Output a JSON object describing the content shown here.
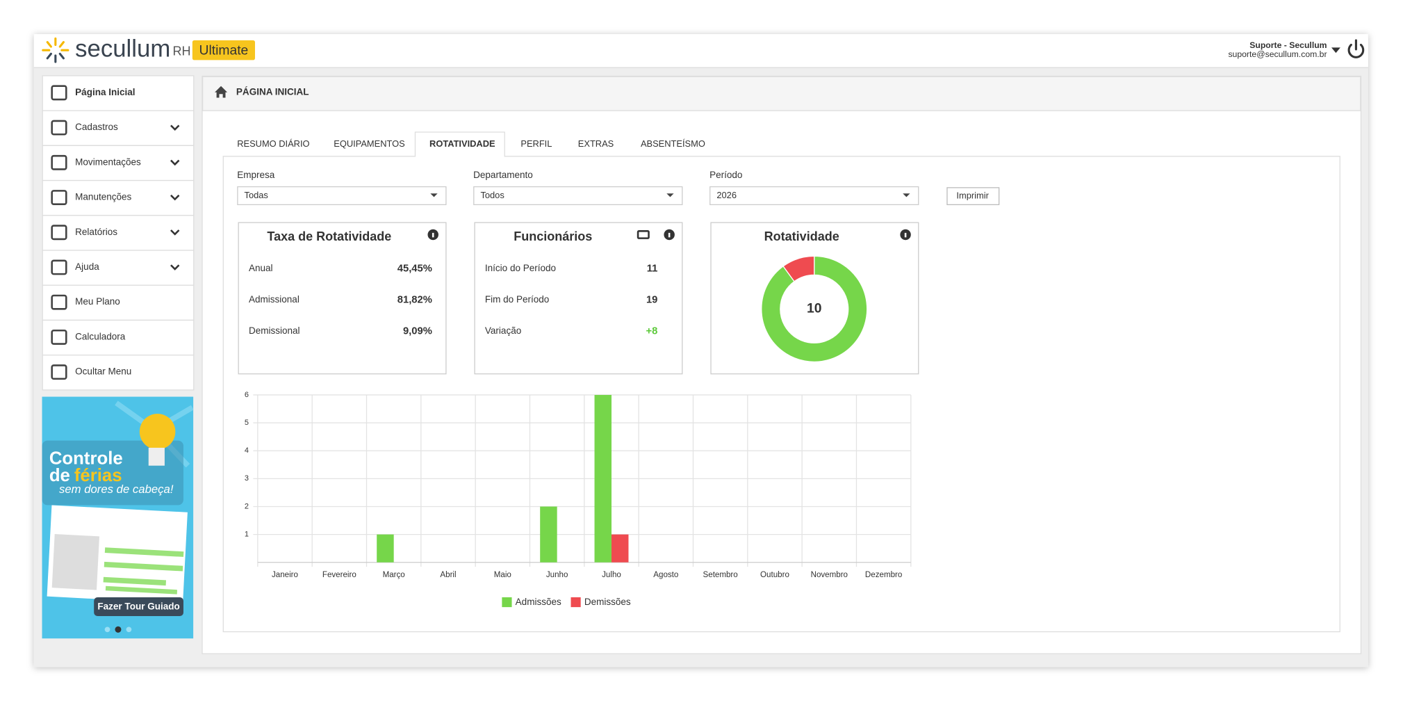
{
  "header": {
    "logo": "secullum",
    "product": "RH",
    "edition": "Ultimate",
    "user_name": "Suporte - Secullum",
    "user_email": "suporte@secullum.com.br"
  },
  "sidebar": {
    "active_menu": 0,
    "menu": [
      {
        "label": "Página Inicial",
        "submenu": false
      },
      {
        "label": "Cadastros",
        "submenu": true
      },
      {
        "label": "Movimentações",
        "submenu": true
      },
      {
        "label": "Manutenções",
        "submenu": true
      },
      {
        "label": "Relatórios",
        "submenu": true
      },
      {
        "label": "Ajuda",
        "submenu": true
      },
      {
        "label": "Meu Plano",
        "submenu": false
      },
      {
        "label": "Calculadora",
        "submenu": false
      },
      {
        "label": "Ocultar Menu",
        "submenu": false
      }
    ],
    "banner": {
      "title_1": "Controle",
      "title_2": "de",
      "title_3": "férias",
      "subtitle": "sem dores de cabeça!",
      "button": "Fazer Tour Guiado"
    }
  },
  "page_title": "PÁGINA INICIAL",
  "tabs": [
    "RESUMO DIÁRIO",
    "EQUIPAMENTOS",
    "ROTATIVIDADE",
    "PERFIL",
    "EXTRAS",
    "ABSENTEÍSMO"
  ],
  "active_tab": 2,
  "filters": [
    {
      "label": "Empresa",
      "value": "Todas"
    },
    {
      "label": "Departamento",
      "value": "Todos"
    },
    {
      "label": "Período",
      "value": "2026"
    }
  ],
  "print_button": "Imprimir",
  "cards": [
    {
      "title": "Taxa de Rotatividade",
      "rows": [
        {
          "label": "Anual",
          "value": "45,45%"
        },
        {
          "label": "Admissional",
          "value": "81,82%"
        },
        {
          "label": "Demissional",
          "value": "9,09%"
        }
      ]
    },
    {
      "title": "Funcionários",
      "rows": [
        {
          "label": "Início do Período",
          "value": "11"
        },
        {
          "label": "Fim do Período",
          "value": "19"
        },
        {
          "label": "Variação",
          "value": "+8",
          "color": "#5cc93a"
        }
      ]
    }
  ],
  "chart_data": [
    {
      "type": "donut",
      "title": "Rotatividade",
      "center_value": 10,
      "values": [
        9,
        1
      ],
      "colors": [
        "#76d64a",
        "#ef4b50"
      ]
    },
    {
      "type": "bar",
      "categories": [
        "Janeiro",
        "Fevereiro",
        "Março",
        "Abril",
        "Maio",
        "Junho",
        "Julho",
        "Agosto",
        "Setembro",
        "Outubro",
        "Novembro",
        "Dezembro"
      ],
      "series": [
        {
          "name": "Admissões",
          "color": "#76d64a",
          "values": [
            0,
            0,
            1,
            0,
            0,
            2,
            6,
            0,
            0,
            0,
            0,
            0
          ]
        },
        {
          "name": "Demissões",
          "color": "#ef4b50",
          "values": [
            0,
            0,
            0,
            0,
            0,
            0,
            1,
            0,
            0,
            0,
            0,
            0
          ]
        }
      ],
      "ylim": [
        0,
        6
      ],
      "yticks": [
        1,
        2,
        3,
        4,
        5,
        6
      ],
      "grid": true
    }
  ]
}
